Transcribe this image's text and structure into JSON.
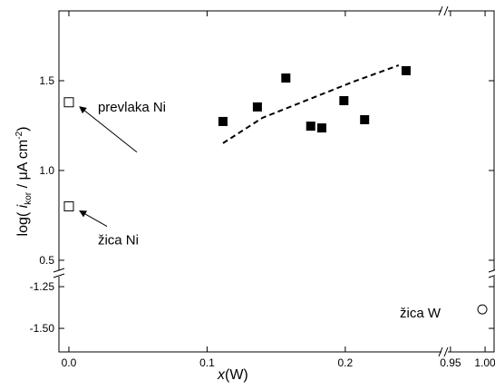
{
  "chart_data": {
    "type": "scatter",
    "x_label": {
      "main": "x",
      "unit": "(W)"
    },
    "y_label": {
      "pre": "log( ",
      "symbol": "i",
      "sub": "kor",
      "mid": " / μA cm",
      "sup": "-2",
      "post": ")"
    },
    "x_segments": [
      {
        "xlim": [
          -0.0072,
          0.2716
        ],
        "xticks": [
          {
            "value": 0,
            "label": "0.0"
          },
          0.1,
          0.2
        ]
      },
      {
        "xlim": [
          0.941,
          1.013
        ],
        "xticks": [
          0.95,
          {
            "value": 1,
            "label": "1.00"
          }
        ]
      }
    ],
    "y_segments": [
      {
        "ylim": [
          0.434,
          1.889
        ],
        "yticks": [
          0.5,
          {
            "value": 1,
            "label": "1.0"
          },
          1.5
        ]
      },
      {
        "ylim": [
          -1.641,
          -1.179
        ],
        "yticks": [
          -1.25,
          {
            "value": -1.5,
            "label": "-1.50"
          }
        ]
      }
    ],
    "series": [
      {
        "marker": "open-square",
        "color": "#000000",
        "x_segment": 0,
        "y_segment": 0,
        "x": [
          0,
          0
        ],
        "values": [
          1.38,
          0.8
        ]
      },
      {
        "marker": "filled-square",
        "color": "#000000",
        "x_segment": 0,
        "y_segment": 0,
        "x": [
          0.1115,
          0.1364,
          0.157,
          0.175,
          0.183,
          0.199,
          0.214,
          0.244
        ],
        "values": [
          1.273,
          1.354,
          1.515,
          1.247,
          1.237,
          1.389,
          1.283,
          1.556
        ]
      },
      {
        "marker": "dashed-line",
        "color": "#000000",
        "x_segment": 0,
        "y_segment": 0,
        "x": [
          0.1115,
          0.14,
          0.173,
          0.206,
          0.2387
        ],
        "values": [
          1.152,
          1.293,
          1.394,
          1.495,
          1.586
        ]
      },
      {
        "marker": "open-circle",
        "color": "#000000",
        "x_segment": 1,
        "y_segment": 1,
        "x": [
          0.996
        ],
        "values": [
          -1.386
        ]
      }
    ],
    "annotations": [
      {
        "text": "prevlaka Ni",
        "series": 0,
        "point": 0
      },
      {
        "text": "žica Ni",
        "series": 0,
        "point": 1
      },
      {
        "text": "žica W",
        "series": 3,
        "point": 0
      }
    ]
  }
}
